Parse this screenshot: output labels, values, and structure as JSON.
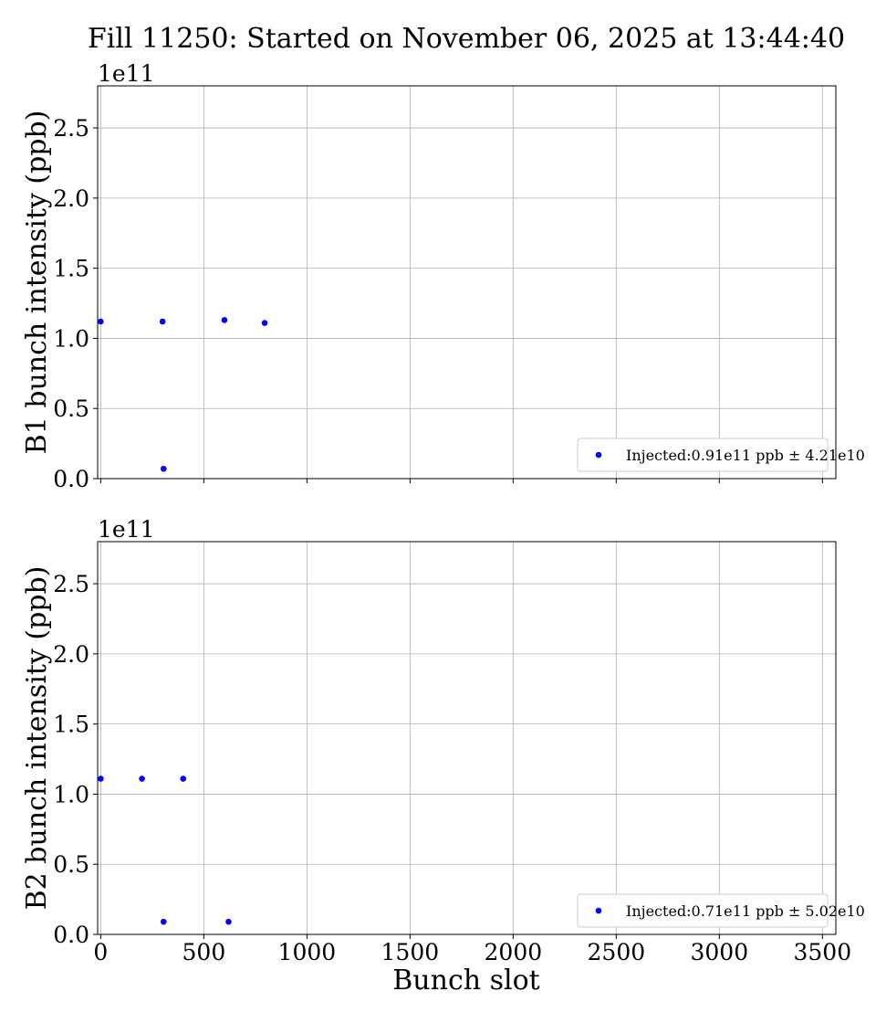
{
  "figure": {
    "title": "Fill 11250: Started on November 06, 2025 at 13:44:40",
    "xlabel": "Bunch slot"
  },
  "chart_data": [
    {
      "type": "scatter",
      "ylabel": "B1 bunch intensity (ppb)",
      "offset_text": "1e11",
      "xlim": [
        -15,
        3565
      ],
      "ylim": [
        0,
        2.8
      ],
      "x_ticks": [
        0,
        500,
        1000,
        1500,
        2000,
        2500,
        3000,
        3500
      ],
      "x_tick_labels": [],
      "y_ticks": [
        0.0,
        0.5,
        1.0,
        1.5,
        2.0,
        2.5
      ],
      "y_tick_labels": [
        "0.0",
        "0.5",
        "1.0",
        "1.5",
        "2.0",
        "2.5"
      ],
      "grid": true,
      "legend_position": "lower-right",
      "series": [
        {
          "name": "Injected:0.91e11 ppb ± 4.21e10",
          "color": "#0000ff",
          "x": [
            0,
            300,
            305,
            600,
            795
          ],
          "y": [
            1.12,
            1.12,
            0.07,
            1.13,
            1.11
          ]
        }
      ]
    },
    {
      "type": "scatter",
      "ylabel": "B2 bunch intensity (ppb)",
      "offset_text": "1e11",
      "xlim": [
        -15,
        3565
      ],
      "ylim": [
        0,
        2.8
      ],
      "x_ticks": [
        0,
        500,
        1000,
        1500,
        2000,
        2500,
        3000,
        3500
      ],
      "x_tick_labels": [
        "0",
        "500",
        "1000",
        "1500",
        "2000",
        "2500",
        "3000",
        "3500"
      ],
      "y_ticks": [
        0.0,
        0.5,
        1.0,
        1.5,
        2.0,
        2.5
      ],
      "y_tick_labels": [
        "0.0",
        "0.5",
        "1.0",
        "1.5",
        "2.0",
        "2.5"
      ],
      "grid": true,
      "legend_position": "lower-right",
      "series": [
        {
          "name": "Injected:0.71e11 ppb ± 5.02e10",
          "color": "#0000ff",
          "x": [
            0,
            200,
            305,
            400,
            620
          ],
          "y": [
            1.11,
            1.11,
            0.09,
            1.11,
            0.09
          ]
        }
      ]
    }
  ]
}
